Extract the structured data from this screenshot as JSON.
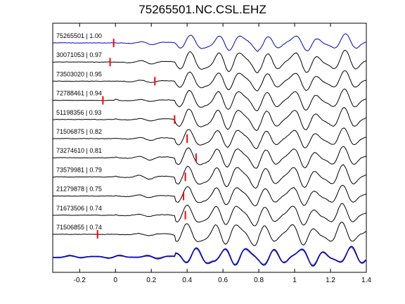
{
  "chart_data": {
    "type": "line",
    "title": "75265501.NC.CSL.EHZ",
    "xlabel": "",
    "ylabel": "",
    "xlim": [
      -0.35,
      1.4
    ],
    "x_ticks": [
      "-0.2",
      "0",
      "0.2",
      "0.4",
      "0.6",
      "0.8",
      "1",
      "1.2",
      "1.4"
    ],
    "x_tick_values": [
      -0.2,
      0,
      0.2,
      0.4,
      0.6,
      0.8,
      1.0,
      1.2,
      1.4
    ],
    "grid": false,
    "colors": {
      "reference": "#0000cc",
      "trace": "#000000",
      "pick": "#ff0000",
      "stack": "#808080"
    },
    "traces": [
      {
        "label": "75265501 | 1.00",
        "pick": -0.01,
        "color": "#0000cc"
      },
      {
        "label": "30071053 | 0.97",
        "pick": -0.03,
        "color": "#000000"
      },
      {
        "label": "73503020 | 0.95",
        "pick": 0.22,
        "color": "#000000"
      },
      {
        "label": "72788461 | 0.94",
        "pick": -0.07,
        "color": "#000000"
      },
      {
        "label": "51198356 | 0.93",
        "pick": 0.33,
        "color": "#000000"
      },
      {
        "label": "71506875 | 0.82",
        "pick": 0.4,
        "color": "#000000"
      },
      {
        "label": "73274610 | 0.81",
        "pick": 0.45,
        "color": "#000000"
      },
      {
        "label": "73579981 | 0.79",
        "pick": 0.39,
        "color": "#000000"
      },
      {
        "label": "21279878 | 0.75",
        "pick": 0.38,
        "color": "#000000"
      },
      {
        "label": "71673506 | 0.74",
        "pick": 0.39,
        "color": "#000000"
      },
      {
        "label": "71506855 | 0.74",
        "pick": -0.1,
        "color": "#000000"
      }
    ],
    "overlay": {
      "stack_count": 10,
      "reference_color": "#0000cc"
    }
  }
}
